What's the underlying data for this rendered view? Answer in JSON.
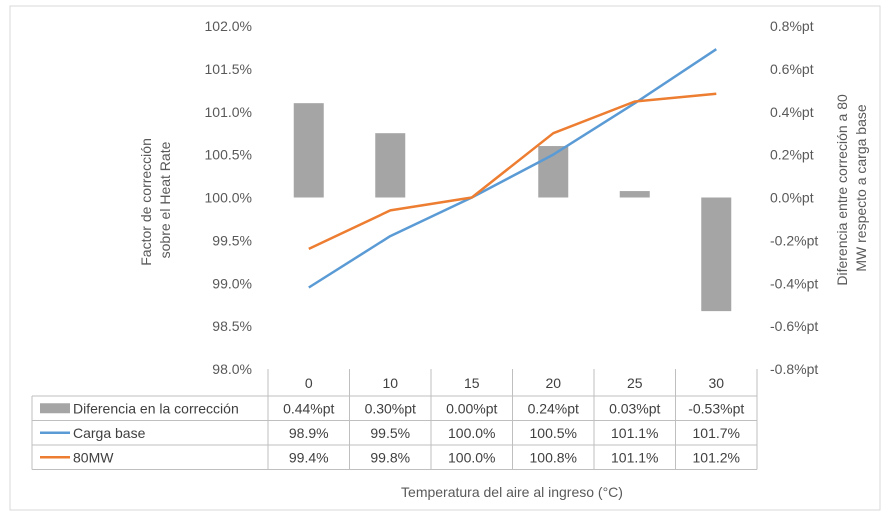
{
  "chart_data": {
    "type": "bar+line",
    "categories": [
      "0",
      "10",
      "15",
      "20",
      "25",
      "30"
    ],
    "xlabel": "Temperatura del aire al ingreso (°C)",
    "ylabel_left": "Factor de corrección sobre el Heat Rate",
    "ylabel_right": "Diferencia entre correción a 80 MW respecto a carga base",
    "left_axis": {
      "range": [
        98.0,
        102.0
      ],
      "ticks": [
        "98.0%",
        "98.5%",
        "99.0%",
        "99.5%",
        "100.0%",
        "100.5%",
        "101.0%",
        "101.5%",
        "102.0%"
      ]
    },
    "right_axis": {
      "range": [
        -0.8,
        0.8
      ],
      "ticks": [
        "-0.8%pt",
        "-0.6%pt",
        "-0.4%pt",
        "-0.2%pt",
        "0.0%pt",
        "0.2%pt",
        "0.4%pt",
        "0.6%pt",
        "0.8%pt"
      ]
    },
    "bars": {
      "name": "Diferencia en la corrección",
      "axis": "right",
      "values": [
        0.44,
        0.3,
        0.0,
        0.24,
        0.03,
        -0.53
      ],
      "labels": [
        "0.44%pt",
        "0.30%pt",
        "0.00%pt",
        "0.24%pt",
        "0.03%pt",
        "-0.53%pt"
      ]
    },
    "series": [
      {
        "name": "Carga base",
        "axis": "left",
        "values": [
          98.95,
          99.55,
          100.0,
          100.5,
          101.1,
          101.73
        ],
        "labels": [
          "98.9%",
          "99.5%",
          "100.0%",
          "100.5%",
          "101.1%",
          "101.7%"
        ]
      },
      {
        "name": "80MW",
        "axis": "left",
        "values": [
          99.4,
          99.85,
          100.0,
          100.75,
          101.12,
          101.21
        ],
        "labels": [
          "99.4%",
          "99.8%",
          "100.0%",
          "100.8%",
          "101.1%",
          "101.2%"
        ]
      }
    ],
    "grid": false,
    "legend": "data-table",
    "colors": {
      "bars": "#a5a5a5",
      "carga_base": "#5b9bd5",
      "80mw": "#ed7d31",
      "table_border": "#bfbfbf"
    }
  }
}
